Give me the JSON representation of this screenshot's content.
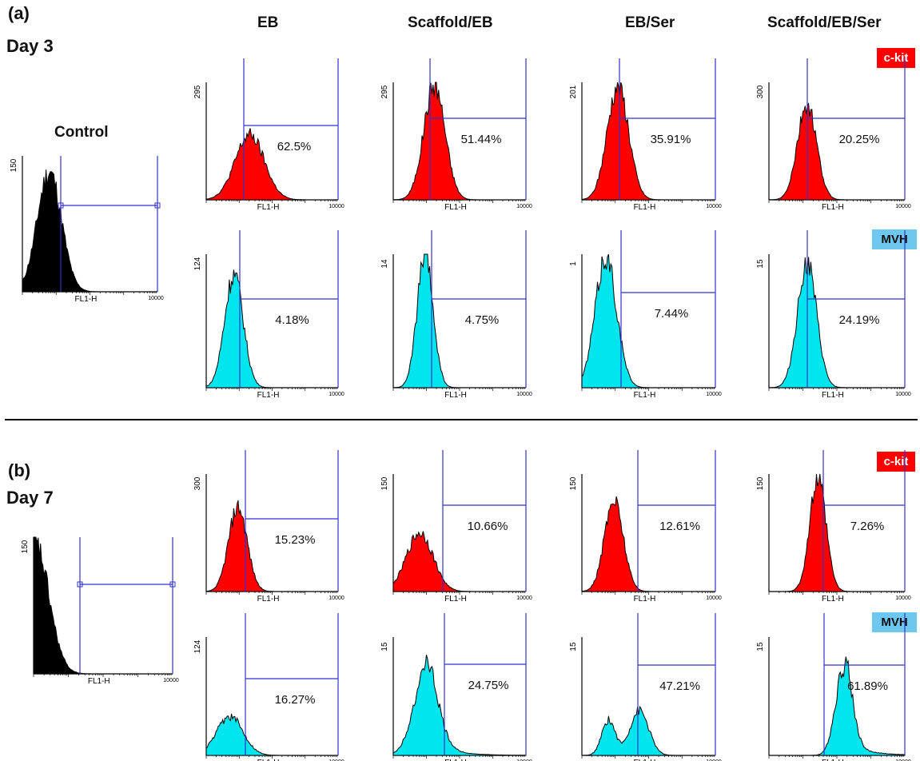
{
  "colors": {
    "ckit": "#ff0000",
    "mvh": "#00e5ee",
    "mvh_tag": "#6ec7ef",
    "control": "#000000",
    "gate": "#3333cc"
  },
  "labels": {
    "panel_a": "(a)",
    "panel_b": "(b)",
    "day_a": "Day 3",
    "day_b": "Day 7",
    "control": "Control",
    "conditions": [
      "EB",
      "Scaffold/EB",
      "EB/Ser",
      "Scaffold/EB/Ser"
    ],
    "marker_ckit": "c-kit",
    "marker_mvh": "MVH"
  },
  "chart_data": [
    {
      "type": "area",
      "panel": "(a)",
      "day": "Day 3",
      "xlabel": "FL1-H",
      "x_end_tick": "10000",
      "control": {
        "title": "Control",
        "ymax_label": "150",
        "peak": 0.2,
        "width": 0.09,
        "height": 0.88
      },
      "rows": [
        {
          "marker": "c-kit",
          "cells": [
            {
              "condition": "EB",
              "percent": "62.5%",
              "ymax_label": "295",
              "peak": 0.33,
              "width": 0.11,
              "height": 0.55
            },
            {
              "condition": "Scaffold/EB",
              "percent": "51.44%",
              "ymax_label": "295",
              "peak": 0.31,
              "width": 0.08,
              "height": 0.98
            },
            {
              "condition": "EB/Ser",
              "percent": "35.91%",
              "ymax_label": "201",
              "peak": 0.27,
              "width": 0.08,
              "height": 0.97
            },
            {
              "condition": "Scaffold/EB/Ser",
              "percent": "20.25%",
              "ymax_label": "300",
              "peak": 0.28,
              "width": 0.07,
              "height": 0.8
            }
          ]
        },
        {
          "marker": "MVH",
          "cells": [
            {
              "condition": "EB",
              "percent": "4.18%",
              "ymax_label": "124",
              "peak": 0.21,
              "width": 0.07,
              "height": 0.85
            },
            {
              "condition": "Scaffold/EB",
              "percent": "4.75%",
              "ymax_label": "14",
              "peak": 0.24,
              "width": 0.06,
              "height": 0.98
            },
            {
              "condition": "EB/Ser",
              "percent": "7.44%",
              "ymax_label": "1",
              "peak": 0.18,
              "width": 0.08,
              "height": 0.98
            },
            {
              "condition": "Scaffold/EB/Ser",
              "percent": "24.19%",
              "ymax_label": "15",
              "peak": 0.28,
              "width": 0.07,
              "height": 0.93
            }
          ]
        }
      ]
    },
    {
      "type": "area",
      "panel": "(b)",
      "day": "Day 7",
      "xlabel": "FL1-H",
      "x_end_tick": "10000",
      "control": {
        "title": "",
        "ymax_label": "150",
        "peak": 0.01,
        "width": 0.1,
        "height": 0.95
      },
      "rows": [
        {
          "marker": "c-kit",
          "cells": [
            {
              "condition": "EB",
              "percent": "15.23%",
              "ymax_label": "300",
              "peak": 0.24,
              "width": 0.07,
              "height": 0.72
            },
            {
              "condition": "Scaffold/EB",
              "percent": "10.66%",
              "ymax_label": "150",
              "peak": 0.2,
              "width": 0.1,
              "height": 0.5
            },
            {
              "condition": "EB/Ser",
              "percent": "12.61%",
              "ymax_label": "150",
              "peak": 0.24,
              "width": 0.07,
              "height": 0.78
            },
            {
              "condition": "Scaffold/EB/Ser",
              "percent": "7.26%",
              "ymax_label": "150",
              "peak": 0.36,
              "width": 0.06,
              "height": 0.95
            }
          ]
        },
        {
          "marker": "MVH",
          "cells": [
            {
              "condition": "EB",
              "percent": "16.27%",
              "ymax_label": "124",
              "peak": 0.18,
              "width": 0.1,
              "height": 0.33
            },
            {
              "condition": "Scaffold/EB",
              "percent": "24.75%",
              "ymax_label": "15",
              "peak": 0.24,
              "width": 0.09,
              "height": 0.68,
              "tail": 0.16
            },
            {
              "condition": "EB/Ser",
              "percent": "47.21%",
              "ymax_label": "15",
              "peak": 0.43,
              "width": 0.07,
              "height": 0.38,
              "second_peak": 0.2,
              "second_height": 0.3
            },
            {
              "condition": "Scaffold/EB/Ser",
              "percent": "61.89%",
              "ymax_label": "15",
              "peak": 0.55,
              "width": 0.06,
              "height": 0.74,
              "tail": 0.12
            }
          ]
        }
      ]
    }
  ]
}
